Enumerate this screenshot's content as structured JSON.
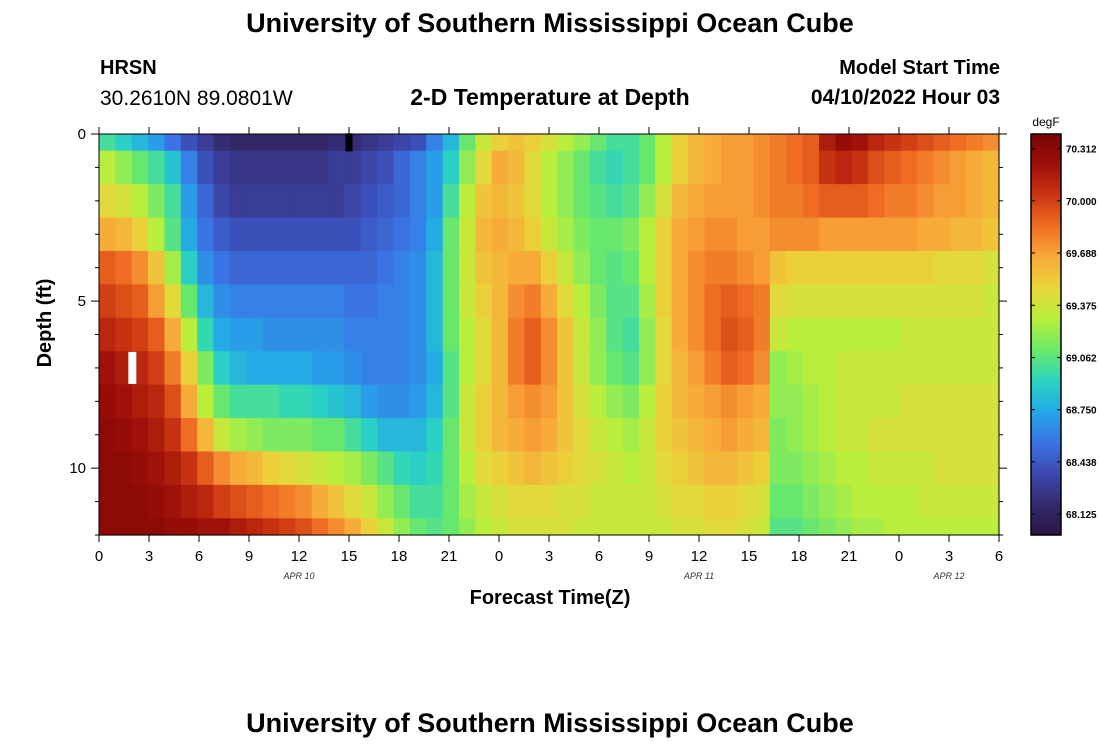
{
  "header": {
    "title": "University of Southern Mississippi Ocean Cube",
    "station_code": "HRSN",
    "station_coords": "30.2610N  89.0801W",
    "plot_title": "2-D Temperature at Depth",
    "model_start_label": "Model Start Time",
    "model_start_value": "04/10/2022 Hour 03"
  },
  "footer": {
    "title": "University of Southern Mississippi Ocean Cube"
  },
  "colors": {
    "colormap": [
      "#2b1644",
      "#332a6e",
      "#3d49b0",
      "#3a74e4",
      "#24a8e8",
      "#2bd4c0",
      "#6be86a",
      "#b8ef3c",
      "#e9d63a",
      "#f8a93a",
      "#ef6e22",
      "#cc3612",
      "#9c0f08",
      "#7a0606"
    ]
  },
  "chart_data": {
    "type": "heatmap",
    "title": "2-D Temperature at Depth",
    "xlabel": "Forecast Time(Z)",
    "ylabel": "Depth (ft)",
    "x_hours_from_apr10_00z": [
      0,
      1,
      2,
      3,
      4,
      5,
      6,
      7,
      8,
      9,
      10,
      11,
      12,
      13,
      14,
      15,
      16,
      17,
      18,
      19,
      20,
      21,
      22,
      23,
      24,
      25,
      26,
      27,
      28,
      29,
      30,
      31,
      32,
      33,
      34,
      35,
      36,
      37,
      38,
      39,
      40,
      41,
      42,
      43,
      44,
      45,
      46,
      47,
      48,
      49,
      50,
      51,
      52,
      53,
      54
    ],
    "xlim": [
      0,
      54
    ],
    "x_tick_hours": [
      0,
      3,
      6,
      9,
      12,
      15,
      18,
      21,
      24,
      27,
      30,
      33,
      36,
      39,
      42,
      45,
      48,
      51,
      54
    ],
    "x_tick_labels": [
      "0",
      "3",
      "6",
      "9",
      "12",
      "15",
      "18",
      "21",
      "0",
      "3",
      "6",
      "9",
      "12",
      "15",
      "18",
      "21",
      "0",
      "3",
      "6"
    ],
    "date_labels": [
      {
        "label": "APR 10",
        "hour": 12
      },
      {
        "label": "APR 11",
        "hour": 36
      },
      {
        "label": "APR 12",
        "hour": 51
      }
    ],
    "depth_levels_ft": [
      0,
      1,
      2,
      3,
      4,
      5,
      6,
      7,
      8,
      9,
      10,
      11,
      12
    ],
    "ylim": [
      0,
      12
    ],
    "y_tick_values": [
      0,
      5,
      10
    ],
    "y_tick_labels": [
      "0",
      "5",
      "10"
    ],
    "colorbar": {
      "unit": "degF",
      "min": 68.0,
      "max": 70.4,
      "ticks": [
        68.125,
        68.438,
        68.75,
        69.062,
        69.375,
        69.688,
        70.0,
        70.312
      ],
      "tick_labels": [
        "68.125",
        "68.438",
        "68.750",
        "69.062",
        "69.375",
        "69.688",
        "70.000",
        "70.312"
      ]
    },
    "markers": [
      {
        "label": "surface-marker",
        "hour": 15,
        "depth": 0.25,
        "color": "#000000"
      },
      {
        "label": "column-marker",
        "hour": 2,
        "depth": 7.0,
        "color": "#ffffff"
      }
    ],
    "values": [
      [
        69.0,
        68.9,
        68.8,
        68.7,
        68.55,
        68.4,
        68.3,
        68.2,
        68.15,
        68.15,
        68.15,
        68.15,
        68.15,
        68.15,
        68.2,
        68.2,
        68.25,
        68.3,
        68.35,
        68.4,
        68.6,
        68.8,
        69.1,
        69.35,
        69.5,
        69.55,
        69.5,
        69.4,
        69.3,
        69.2,
        69.1,
        69.0,
        69.0,
        69.1,
        69.3,
        69.5,
        69.6,
        69.65,
        69.7,
        69.7,
        69.75,
        69.8,
        69.85,
        69.9,
        70.15,
        70.25,
        70.2,
        70.1,
        70.05,
        70.0,
        69.95,
        69.9,
        69.85,
        69.8,
        69.75
      ],
      [
        69.3,
        69.2,
        69.1,
        69.0,
        68.85,
        68.6,
        68.4,
        68.3,
        68.25,
        68.25,
        68.25,
        68.25,
        68.25,
        68.25,
        68.3,
        68.3,
        68.35,
        68.4,
        68.5,
        68.6,
        68.7,
        68.9,
        69.2,
        69.45,
        69.65,
        69.6,
        69.45,
        69.3,
        69.2,
        69.1,
        69.0,
        68.95,
        69.0,
        69.1,
        69.3,
        69.5,
        69.6,
        69.65,
        69.7,
        69.7,
        69.75,
        69.8,
        69.85,
        69.9,
        70.05,
        70.1,
        70.05,
        69.95,
        69.9,
        69.85,
        69.8,
        69.75,
        69.7,
        69.65,
        69.6
      ],
      [
        69.45,
        69.4,
        69.3,
        69.15,
        69.0,
        68.7,
        68.5,
        68.35,
        68.3,
        68.3,
        68.3,
        68.3,
        68.3,
        68.3,
        68.3,
        68.35,
        68.4,
        68.45,
        68.5,
        68.6,
        68.7,
        69.0,
        69.3,
        69.55,
        69.6,
        69.55,
        69.45,
        69.3,
        69.2,
        69.1,
        69.05,
        69.0,
        69.05,
        69.2,
        69.4,
        69.6,
        69.65,
        69.7,
        69.7,
        69.7,
        69.75,
        69.8,
        69.8,
        69.85,
        69.9,
        69.9,
        69.9,
        69.85,
        69.8,
        69.8,
        69.75,
        69.7,
        69.7,
        69.65,
        69.6
      ],
      [
        69.65,
        69.6,
        69.5,
        69.3,
        69.05,
        68.75,
        68.55,
        68.45,
        68.4,
        68.4,
        68.4,
        68.4,
        68.4,
        68.4,
        68.4,
        68.4,
        68.45,
        68.5,
        68.55,
        68.6,
        68.75,
        69.1,
        69.35,
        69.6,
        69.65,
        69.6,
        69.5,
        69.35,
        69.25,
        69.15,
        69.1,
        69.1,
        69.15,
        69.3,
        69.5,
        69.65,
        69.7,
        69.75,
        69.75,
        69.7,
        69.7,
        69.75,
        69.75,
        69.75,
        69.7,
        69.7,
        69.7,
        69.7,
        69.7,
        69.7,
        69.65,
        69.65,
        69.6,
        69.6,
        69.55
      ],
      [
        69.9,
        69.85,
        69.75,
        69.55,
        69.25,
        68.9,
        68.65,
        68.55,
        68.5,
        68.5,
        68.5,
        68.5,
        68.5,
        68.5,
        68.5,
        68.5,
        68.5,
        68.55,
        68.6,
        68.65,
        68.8,
        69.1,
        69.35,
        69.55,
        69.6,
        69.65,
        69.65,
        69.5,
        69.35,
        69.2,
        69.1,
        69.05,
        69.1,
        69.3,
        69.5,
        69.65,
        69.75,
        69.8,
        69.8,
        69.75,
        69.7,
        69.55,
        69.5,
        69.5,
        69.5,
        69.5,
        69.5,
        69.5,
        69.5,
        69.5,
        69.5,
        69.45,
        69.45,
        69.45,
        69.4
      ],
      [
        70.0,
        69.95,
        69.9,
        69.7,
        69.45,
        69.1,
        68.8,
        68.65,
        68.6,
        68.6,
        68.6,
        68.6,
        68.6,
        68.6,
        68.6,
        68.55,
        68.55,
        68.6,
        68.6,
        68.65,
        68.8,
        69.1,
        69.35,
        69.5,
        69.6,
        69.75,
        69.8,
        69.65,
        69.45,
        69.3,
        69.15,
        69.05,
        69.05,
        69.25,
        69.5,
        69.65,
        69.75,
        69.85,
        69.9,
        69.85,
        69.8,
        69.45,
        69.4,
        69.4,
        69.4,
        69.4,
        69.4,
        69.4,
        69.4,
        69.4,
        69.4,
        69.4,
        69.4,
        69.4,
        69.35
      ],
      [
        70.1,
        70.05,
        70.0,
        69.9,
        69.65,
        69.3,
        68.95,
        68.75,
        68.7,
        68.7,
        68.65,
        68.65,
        68.65,
        68.65,
        68.65,
        68.6,
        68.6,
        68.6,
        68.6,
        68.65,
        68.8,
        69.1,
        69.3,
        69.45,
        69.6,
        69.8,
        69.9,
        69.75,
        69.55,
        69.35,
        69.2,
        69.05,
        69.0,
        69.2,
        69.45,
        69.65,
        69.75,
        69.85,
        69.95,
        69.9,
        69.8,
        69.35,
        69.3,
        69.3,
        69.3,
        69.3,
        69.3,
        69.3,
        69.3,
        69.35,
        69.35,
        69.35,
        69.35,
        69.35,
        69.35
      ],
      [
        70.2,
        70.15,
        70.1,
        70.0,
        69.8,
        69.5,
        69.15,
        68.9,
        68.8,
        68.75,
        68.75,
        68.75,
        68.75,
        68.7,
        68.7,
        68.65,
        68.6,
        68.6,
        68.6,
        68.65,
        68.75,
        69.05,
        69.3,
        69.45,
        69.6,
        69.8,
        69.9,
        69.75,
        69.55,
        69.35,
        69.2,
        69.1,
        69.05,
        69.2,
        69.45,
        69.6,
        69.7,
        69.8,
        69.9,
        69.85,
        69.75,
        69.2,
        69.25,
        69.3,
        69.3,
        69.35,
        69.35,
        69.35,
        69.35,
        69.35,
        69.35,
        69.35,
        69.35,
        69.35,
        69.35
      ],
      [
        70.25,
        70.2,
        70.15,
        70.1,
        69.95,
        69.65,
        69.3,
        69.1,
        69.0,
        69.0,
        69.0,
        68.95,
        68.95,
        68.9,
        68.85,
        68.8,
        68.7,
        68.65,
        68.65,
        68.7,
        68.8,
        69.05,
        69.35,
        69.5,
        69.6,
        69.7,
        69.75,
        69.7,
        69.55,
        69.4,
        69.3,
        69.2,
        69.15,
        69.3,
        69.5,
        69.6,
        69.65,
        69.7,
        69.75,
        69.7,
        69.65,
        69.2,
        69.2,
        69.25,
        69.3,
        69.35,
        69.35,
        69.35,
        69.35,
        69.4,
        69.4,
        69.4,
        69.4,
        69.4,
        69.4
      ],
      [
        70.3,
        70.25,
        70.2,
        70.15,
        70.05,
        69.85,
        69.6,
        69.35,
        69.25,
        69.2,
        69.15,
        69.15,
        69.15,
        69.1,
        69.1,
        69.0,
        68.9,
        68.8,
        68.8,
        68.8,
        68.9,
        69.1,
        69.35,
        69.5,
        69.6,
        69.65,
        69.7,
        69.65,
        69.55,
        69.45,
        69.35,
        69.3,
        69.25,
        69.35,
        69.5,
        69.55,
        69.6,
        69.65,
        69.7,
        69.65,
        69.6,
        69.15,
        69.2,
        69.25,
        69.3,
        69.35,
        69.35,
        69.4,
        69.4,
        69.4,
        69.4,
        69.4,
        69.4,
        69.4,
        69.4
      ],
      [
        70.3,
        70.3,
        70.25,
        70.2,
        70.15,
        70.05,
        69.9,
        69.75,
        69.65,
        69.6,
        69.5,
        69.45,
        69.4,
        69.35,
        69.3,
        69.25,
        69.15,
        69.05,
        68.95,
        68.9,
        68.95,
        69.1,
        69.3,
        69.45,
        69.5,
        69.55,
        69.6,
        69.55,
        69.5,
        69.45,
        69.4,
        69.35,
        69.3,
        69.35,
        69.45,
        69.5,
        69.55,
        69.6,
        69.6,
        69.55,
        69.5,
        69.15,
        69.15,
        69.2,
        69.25,
        69.3,
        69.3,
        69.35,
        69.35,
        69.35,
        69.35,
        69.4,
        69.4,
        69.4,
        69.4
      ],
      [
        70.3,
        70.3,
        70.3,
        70.25,
        70.2,
        70.15,
        70.1,
        70.0,
        69.95,
        69.9,
        69.85,
        69.8,
        69.75,
        69.65,
        69.55,
        69.45,
        69.35,
        69.2,
        69.1,
        69.0,
        69.0,
        69.1,
        69.25,
        69.35,
        69.4,
        69.45,
        69.45,
        69.45,
        69.4,
        69.4,
        69.35,
        69.35,
        69.35,
        69.35,
        69.4,
        69.45,
        69.45,
        69.5,
        69.5,
        69.45,
        69.4,
        69.1,
        69.1,
        69.15,
        69.2,
        69.25,
        69.3,
        69.3,
        69.3,
        69.3,
        69.35,
        69.35,
        69.35,
        69.35,
        69.35
      ],
      [
        70.3,
        70.3,
        70.3,
        70.3,
        70.25,
        70.25,
        70.2,
        70.2,
        70.15,
        70.1,
        70.05,
        70.0,
        69.95,
        69.85,
        69.75,
        69.65,
        69.5,
        69.35,
        69.2,
        69.1,
        69.05,
        69.1,
        69.2,
        69.3,
        69.35,
        69.4,
        69.4,
        69.4,
        69.4,
        69.35,
        69.35,
        69.35,
        69.35,
        69.35,
        69.35,
        69.4,
        69.4,
        69.45,
        69.45,
        69.4,
        69.35,
        69.05,
        69.05,
        69.1,
        69.15,
        69.2,
        69.25,
        69.25,
        69.3,
        69.3,
        69.3,
        69.3,
        69.3,
        69.3,
        69.3
      ]
    ]
  }
}
